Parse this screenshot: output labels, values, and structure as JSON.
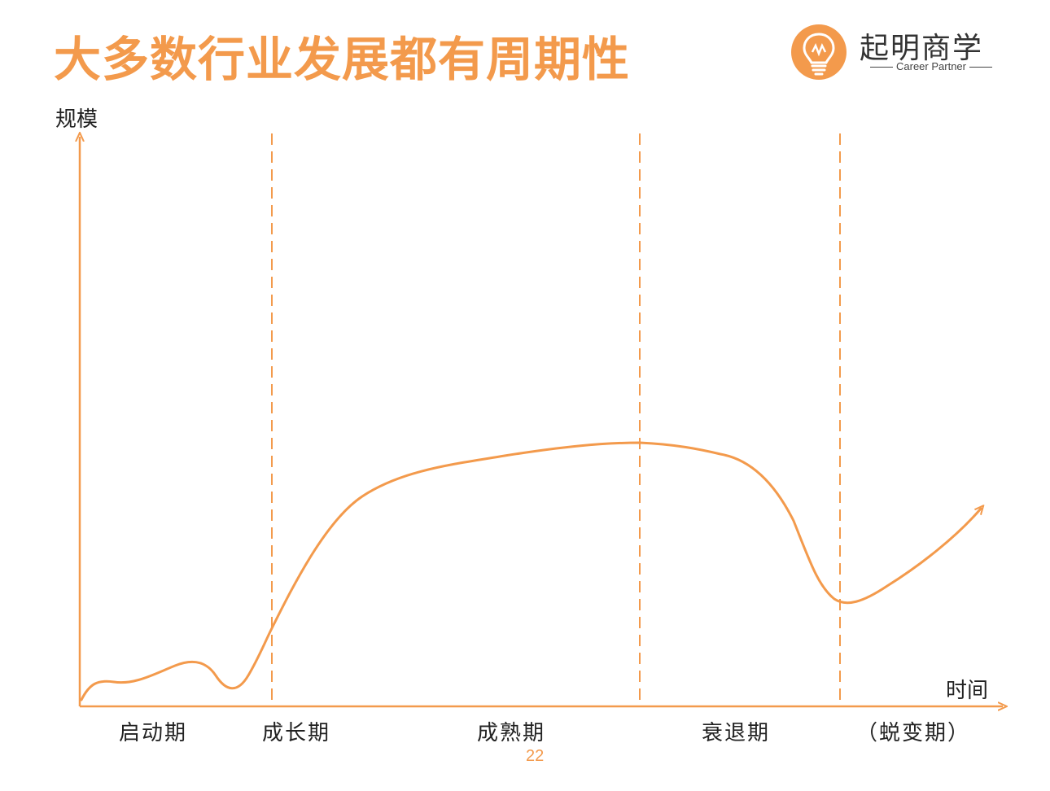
{
  "slide": {
    "title": "大多数行业发展都有周期性",
    "page_number": "22"
  },
  "logo": {
    "name": "起明商学",
    "tagline": "Career Partner",
    "icon": "lightbulb-icon",
    "color": "#F39A4C"
  },
  "diagram": {
    "y_axis_label": "规模",
    "x_axis_label": "时间",
    "phases": [
      "启动期",
      "成长期",
      "成熟期",
      "衰退期",
      "（蜕变期）"
    ],
    "accent_color": "#F39A4C"
  }
}
